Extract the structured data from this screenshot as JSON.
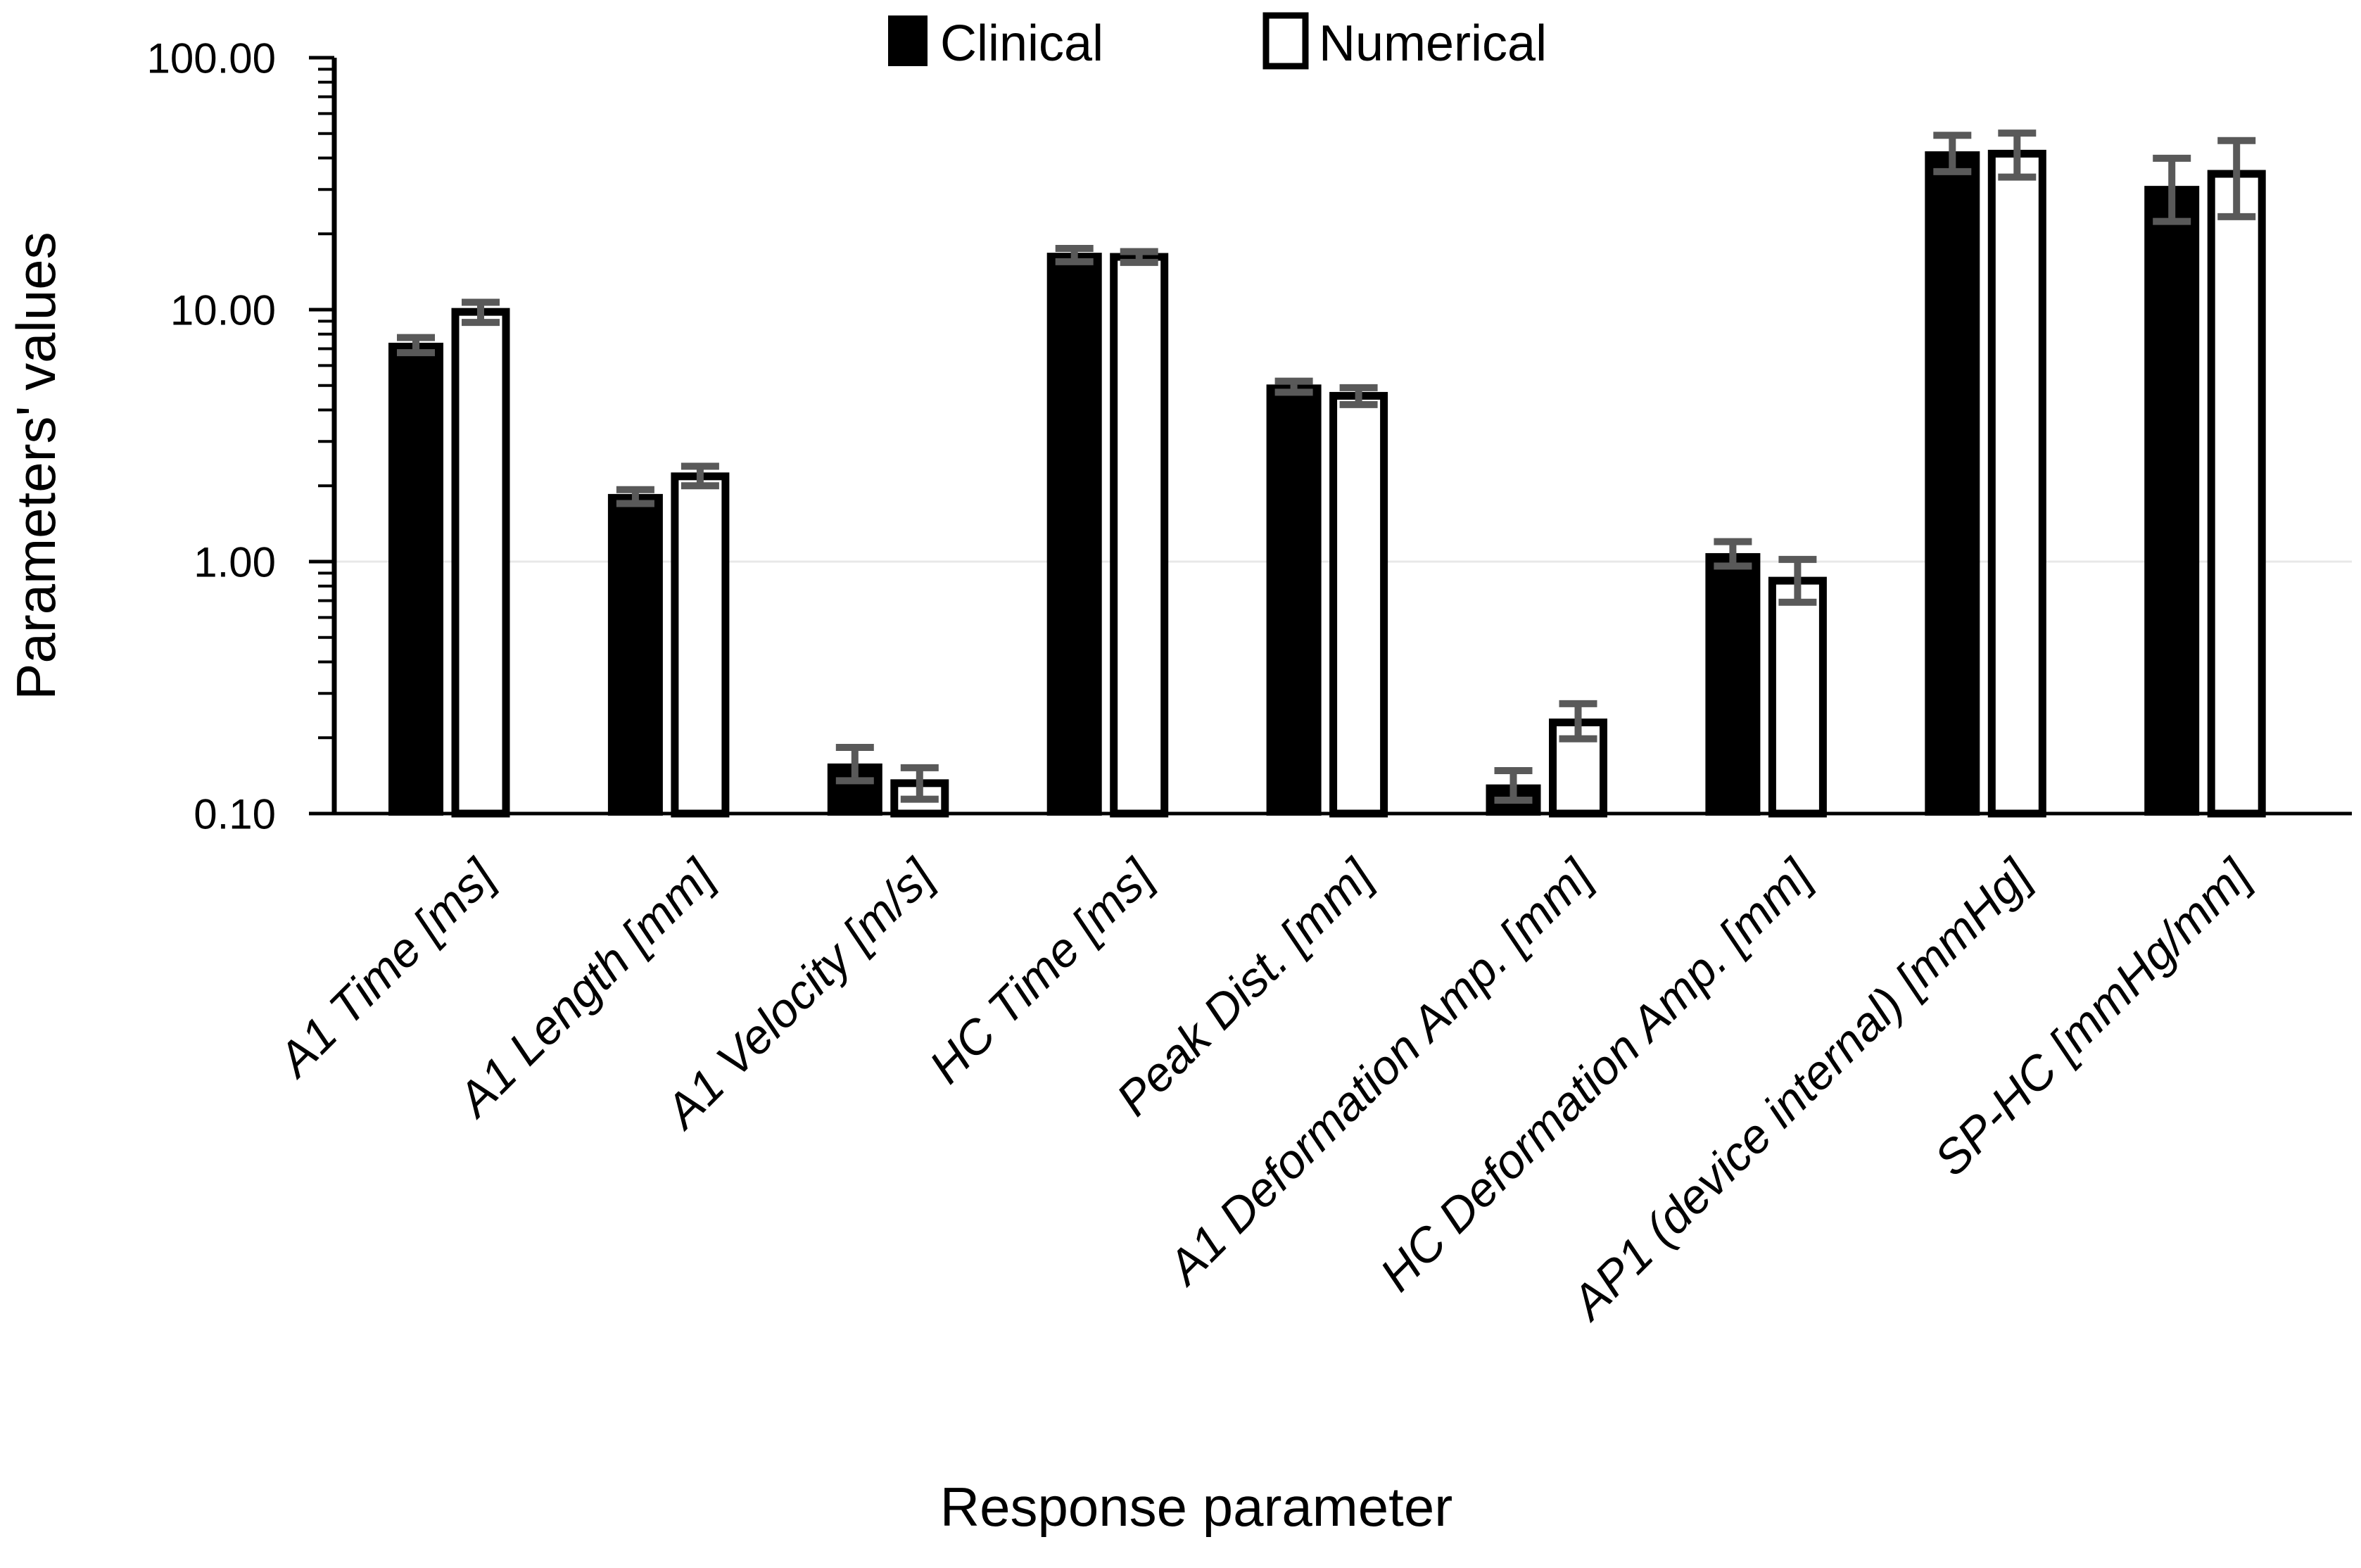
{
  "chart_data": {
    "type": "bar",
    "title": "",
    "xlabel": "Response parameter",
    "ylabel": "Parameters' values",
    "y_scale": "log",
    "ylim": [
      0.1,
      100
    ],
    "grid": false,
    "legend_position": "top-center",
    "yticks": [
      {
        "value": 100,
        "label": "100.00"
      },
      {
        "value": 10,
        "label": "10.00"
      },
      {
        "value": 1,
        "label": "1.00"
      },
      {
        "value": 0.1,
        "label": "0.10"
      }
    ],
    "categories": [
      "A1 Time [ms]",
      "A1 Length [mm]",
      "A1 Velocity [m/s]",
      "HC Time [ms]",
      "Peak Dist. [mm]",
      "A1 Deformation Amp. [mm]",
      "HC Deformation Amp. [mm]",
      "AP1 (device internal) [mmHg]",
      "SP-HC [mmHg/mm]"
    ],
    "series": [
      {
        "name": "Clinical",
        "fill": "#000000",
        "values": [
          7.25,
          1.82,
          0.155,
          16.5,
          4.95,
          0.128,
          1.06,
          41.7,
          30.4
        ],
        "err_plus": [
          0.5,
          0.11,
          0.028,
          1.0,
          0.25,
          0.02,
          0.14,
          7.5,
          9.5
        ],
        "err_minus": [
          0.5,
          0.12,
          0.02,
          1.0,
          0.25,
          0.015,
          0.1,
          6.4,
          8.0
        ]
      },
      {
        "name": "Numerical",
        "fill": "#ffffff",
        "values": [
          9.8,
          2.18,
          0.132,
          16.2,
          4.55,
          0.23,
          0.84,
          41.6,
          34.6
        ],
        "err_plus": [
          0.9,
          0.21,
          0.02,
          0.8,
          0.35,
          0.043,
          0.18,
          8.6,
          12.3
        ],
        "err_minus": [
          0.9,
          0.18,
          0.018,
          0.8,
          0.35,
          0.032,
          0.15,
          8.0,
          11.2
        ]
      }
    ],
    "legend": [
      "Clinical",
      "Numerical"
    ]
  },
  "colors": {
    "bar_clinical": "#000000",
    "bar_numerical_fill": "#ffffff",
    "bar_outline": "#000000",
    "error_bar": "#595959",
    "axis": "#000000",
    "faint_gridline": "#e8e8e8",
    "background": "#ffffff"
  }
}
